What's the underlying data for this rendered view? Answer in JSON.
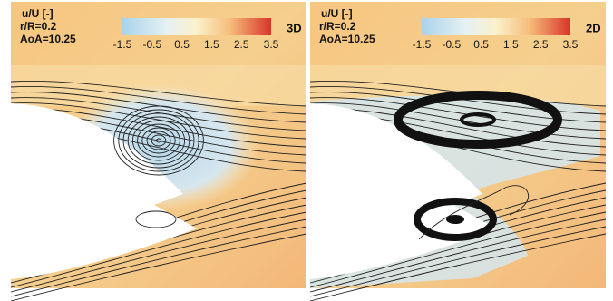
{
  "panels": [
    {
      "labels": [
        "u/U [-]",
        "r/R=0.2",
        "AoA=10.25"
      ],
      "colorbar_ticks": [
        "-1.5",
        "-0.5",
        "0.5",
        "1.5",
        "2.5",
        "3.5"
      ],
      "tag": "3D"
    },
    {
      "labels": [
        "u/U [-]",
        "r/R=0.2",
        "AoA=10.25"
      ],
      "colorbar_ticks": [
        "-1.5",
        "-0.5",
        "0.5",
        "1.5",
        "2.5",
        "3.5"
      ],
      "tag": "2D"
    }
  ]
}
